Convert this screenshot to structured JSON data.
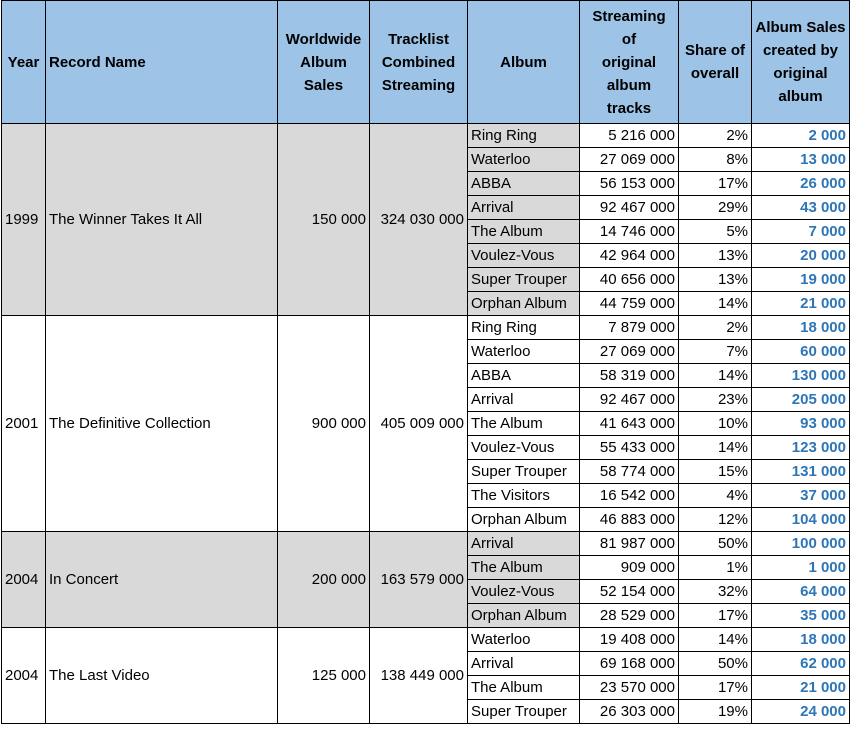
{
  "headers": {
    "year": "Year",
    "record": "Record Name",
    "worldwide": [
      "Worldwide",
      "Album",
      "Sales"
    ],
    "tracklist": [
      "Tracklist",
      "Combined",
      "Streaming"
    ],
    "album": "Album",
    "streaming": [
      "Streaming",
      "of",
      "original",
      "album",
      "tracks"
    ],
    "share": [
      "Share of",
      "overall"
    ],
    "sales": [
      "Album Sales",
      "created  by",
      "original",
      "album"
    ]
  },
  "groups": [
    {
      "year": "1999",
      "record": "The Winner Takes It All",
      "worldwide": "150 000",
      "tracklist": "324 030 000",
      "shaded": true,
      "rows": [
        {
          "album": "Ring Ring",
          "streaming": "5 216 000",
          "share": "2%",
          "sales": "2 000"
        },
        {
          "album": "Waterloo",
          "streaming": "27 069 000",
          "share": "8%",
          "sales": "13 000"
        },
        {
          "album": "ABBA",
          "streaming": "56 153 000",
          "share": "17%",
          "sales": "26 000"
        },
        {
          "album": "Arrival",
          "streaming": "92 467 000",
          "share": "29%",
          "sales": "43 000"
        },
        {
          "album": "The Album",
          "streaming": "14 746 000",
          "share": "5%",
          "sales": "7 000"
        },
        {
          "album": "Voulez-Vous",
          "streaming": "42 964 000",
          "share": "13%",
          "sales": "20 000"
        },
        {
          "album": "Super Trouper",
          "streaming": "40 656 000",
          "share": "13%",
          "sales": "19 000"
        },
        {
          "album": "Orphan Album",
          "streaming": "44 759 000",
          "share": "14%",
          "sales": "21 000"
        }
      ]
    },
    {
      "year": "2001",
      "record": "The Definitive Collection",
      "worldwide": "900 000",
      "tracklist": "405 009 000",
      "shaded": false,
      "rows": [
        {
          "album": "Ring Ring",
          "streaming": "7 879 000",
          "share": "2%",
          "sales": "18 000"
        },
        {
          "album": "Waterloo",
          "streaming": "27 069 000",
          "share": "7%",
          "sales": "60 000"
        },
        {
          "album": "ABBA",
          "streaming": "58 319 000",
          "share": "14%",
          "sales": "130 000"
        },
        {
          "album": "Arrival",
          "streaming": "92 467 000",
          "share": "23%",
          "sales": "205 000"
        },
        {
          "album": "The Album",
          "streaming": "41 643 000",
          "share": "10%",
          "sales": "93 000"
        },
        {
          "album": "Voulez-Vous",
          "streaming": "55 433 000",
          "share": "14%",
          "sales": "123 000"
        },
        {
          "album": "Super Trouper",
          "streaming": "58 774 000",
          "share": "15%",
          "sales": "131 000"
        },
        {
          "album": "The Visitors",
          "streaming": "16 542 000",
          "share": "4%",
          "sales": "37 000"
        },
        {
          "album": "Orphan Album",
          "streaming": "46 883 000",
          "share": "12%",
          "sales": "104 000"
        }
      ]
    },
    {
      "year": "2004",
      "record": "In Concert",
      "worldwide": "200 000",
      "tracklist": "163 579 000",
      "shaded": true,
      "rows": [
        {
          "album": "Arrival",
          "streaming": "81 987 000",
          "share": "50%",
          "sales": "100 000"
        },
        {
          "album": "The Album",
          "streaming": "909 000",
          "share": "1%",
          "sales": "1 000"
        },
        {
          "album": "Voulez-Vous",
          "streaming": "52 154 000",
          "share": "32%",
          "sales": "64 000"
        },
        {
          "album": "Orphan Album",
          "streaming": "28 529 000",
          "share": "17%",
          "sales": "35 000"
        }
      ]
    },
    {
      "year": "2004",
      "record": "The Last Video",
      "worldwide": "125 000",
      "tracklist": "138 449 000",
      "shaded": false,
      "rows": [
        {
          "album": "Waterloo",
          "streaming": "19 408 000",
          "share": "14%",
          "sales": "18 000"
        },
        {
          "album": "Arrival",
          "streaming": "69 168 000",
          "share": "50%",
          "sales": "62 000"
        },
        {
          "album": "The Album",
          "streaming": "23 570 000",
          "share": "17%",
          "sales": "21 000"
        },
        {
          "album": "Super Trouper",
          "streaming": "26 303 000",
          "share": "19%",
          "sales": "24 000"
        }
      ]
    }
  ]
}
